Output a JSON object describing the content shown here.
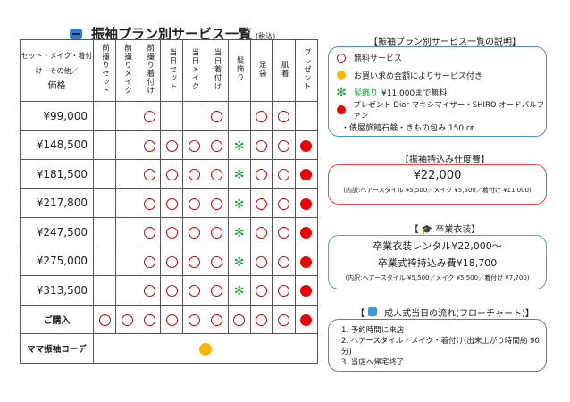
{
  "title": {
    "main": "振袖プラン別サービス一覧",
    "sub": "(税込)",
    "icon": "kimono-icon"
  },
  "table": {
    "corner": {
      "line1": "セット・メイク・着付",
      "line2": "け・その他／",
      "line3": "価格"
    },
    "columns": [
      "前撮りセット",
      "前撮りメイク",
      "前撮り着付け",
      "当日セット",
      "当日メイク",
      "当日着付け",
      "髪飾り",
      "足袋",
      "肌着",
      "プレゼント"
    ],
    "rows": [
      {
        "label": "¥99,000",
        "marks": [
          "",
          "",
          "circle",
          "",
          "",
          "circle",
          "",
          "circle",
          "circle",
          ""
        ]
      },
      {
        "label": "¥148,500",
        "marks": [
          "",
          "",
          "circle",
          "circle",
          "circle",
          "circle",
          "asterisk",
          "circle",
          "circle",
          "dot"
        ]
      },
      {
        "label": "¥181,500",
        "marks": [
          "",
          "",
          "circle",
          "circle",
          "circle",
          "circle",
          "asterisk",
          "circle",
          "circle",
          "dot"
        ]
      },
      {
        "label": "¥217,800",
        "marks": [
          "",
          "",
          "circle",
          "circle",
          "circle",
          "circle",
          "asterisk",
          "circle",
          "circle",
          "dot"
        ]
      },
      {
        "label": "¥247,500",
        "marks": [
          "",
          "",
          "circle",
          "circle",
          "circle",
          "circle",
          "asterisk",
          "circle",
          "circle",
          "dot"
        ]
      },
      {
        "label": "¥275,000",
        "marks": [
          "",
          "",
          "circle",
          "circle",
          "circle",
          "circle",
          "asterisk",
          "circle",
          "circle",
          "dot"
        ]
      },
      {
        "label": "¥313,500",
        "marks": [
          "",
          "",
          "circle",
          "circle",
          "circle",
          "circle",
          "asterisk",
          "circle",
          "circle",
          "dot"
        ]
      },
      {
        "label": "ご購入",
        "marks": [
          "circle",
          "circle",
          "circle",
          "circle",
          "circle",
          "circle",
          "circle",
          "circle",
          "circle",
          "dot"
        ]
      }
    ],
    "mama": {
      "label": "ママ振袖コーデ",
      "mark": "gold-dot"
    },
    "asterisk": "✻"
  },
  "legend": {
    "title": "【振袖プラン別サービス一覧の説明】",
    "items": [
      {
        "icon": "red-circle",
        "text": "無料サービス"
      },
      {
        "icon": "gold-dot",
        "text": "お買い求め金額によりサービス付き"
      },
      {
        "icon": "green-asterisk",
        "label": "髪飾り",
        "text": "¥11,000まで無料"
      },
      {
        "icon": "red-dot",
        "text": "プレゼント Dior マキシマイザー・SHIRO オードパルファン"
      }
    ],
    "continuation": "・俵屋旅館石鹸・きもの包み 150 ㎝",
    "color": "#4a8fd6"
  },
  "mochikomi": {
    "title": "【振袖持込み仕度費】",
    "price": "¥22,000",
    "detail": "(内訳:ヘアースタイル ¥5,500／メイク ¥5,500／着付け ¥11,000)",
    "color": "#e84a4a"
  },
  "graduation": {
    "title": "【 🎓 卒業衣装】",
    "line1": "卒業衣装レンタル¥22,000〜",
    "line2": "卒業式袴持込み費¥18,700",
    "detail": "(内訳:ヘアースタイル ¥5,500／メイク ¥5,500／着付け ¥7,700)",
    "color": "#3cbf6a"
  },
  "flow": {
    "title": "成人式当日の流れ(フローチャート)】",
    "bracket": "【",
    "steps": [
      "1.  予約時間に来店",
      "2.  ヘアースタイル・メイク・着付け(出来上がり時間約 90 分)",
      "3.  当店へ帰宅終了"
    ],
    "color": "#9b59c8"
  }
}
